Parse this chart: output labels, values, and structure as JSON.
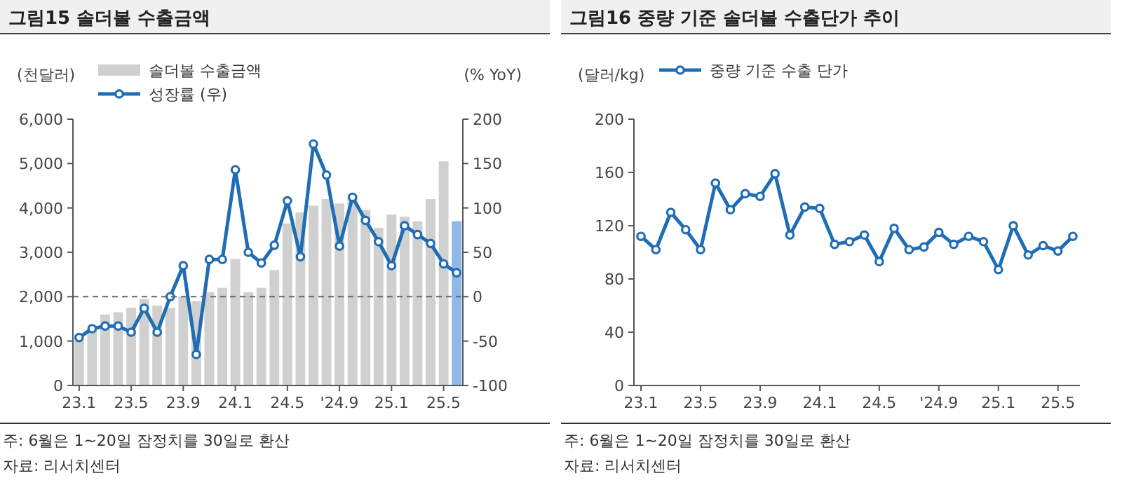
{
  "chart_data": [
    {
      "type": "bar",
      "title": "그림15 솔더볼 수출금액",
      "ylabel": "(천달러)",
      "y2label": "(% YoY)",
      "categories": [
        "23.1",
        null,
        null,
        null,
        "23.5",
        null,
        null,
        null,
        "23.9",
        null,
        null,
        null,
        "24.1",
        null,
        null,
        null,
        "24.5",
        null,
        null,
        null,
        "'24.9",
        null,
        null,
        null,
        "25.1",
        null,
        null,
        null,
        "25.5",
        null
      ],
      "series": [
        {
          "name": "솔더볼 수출금액",
          "color": "#d0d0d0",
          "colors": [
            "#d0d0d0",
            "#d0d0d0",
            "#d0d0d0",
            "#d0d0d0",
            "#d0d0d0",
            "#d0d0d0",
            "#d0d0d0",
            "#d0d0d0",
            "#d0d0d0",
            "#d0d0d0",
            "#d0d0d0",
            "#d0d0d0",
            "#d0d0d0",
            "#d0d0d0",
            "#d0d0d0",
            "#d0d0d0",
            "#d0d0d0",
            "#d0d0d0",
            "#d0d0d0",
            "#d0d0d0",
            "#d0d0d0",
            "#d0d0d0",
            "#d0d0d0",
            "#d0d0d0",
            "#d0d0d0",
            "#d0d0d0",
            "#d0d0d0",
            "#d0d0d0",
            "#d0d0d0",
            "#8db8e8"
          ],
          "values": [
            1050,
            1250,
            1600,
            1650,
            1750,
            1950,
            1800,
            1750,
            2000,
            1900,
            2100,
            2200,
            2850,
            2100,
            2200,
            2600,
            3650,
            3900,
            4050,
            4200,
            4100,
            4300,
            3950,
            3550,
            3850,
            3800,
            3700,
            4200,
            5050,
            3700
          ]
        },
        {
          "type": "line",
          "axis": "y2",
          "name": "성장률 (우)",
          "color": "#1f6db5",
          "values": [
            -46,
            -36,
            -33,
            -33,
            -40,
            -13,
            -40,
            0,
            35,
            -65,
            42,
            42,
            143,
            50,
            38,
            58,
            108,
            45,
            172,
            137,
            57,
            112,
            86,
            62,
            35,
            80,
            70,
            60,
            37,
            27
          ]
        }
      ],
      "ylim": [
        0,
        6000
      ],
      "yticks": [
        {
          "value": 0,
          "label": "0"
        },
        {
          "value": 1000,
          "label": "1,000"
        },
        {
          "value": 2000,
          "label": "2,000"
        },
        {
          "value": 3000,
          "label": "3,000"
        },
        {
          "value": 4000,
          "label": "4,000"
        },
        {
          "value": 5000,
          "label": "5,000"
        },
        {
          "value": 6000,
          "label": "6,000"
        }
      ],
      "y2lim": [
        -100,
        200
      ],
      "y2ticks": [
        -100,
        -50,
        0,
        50,
        100,
        150,
        200
      ],
      "ref_lines": [
        {
          "axis": "y2",
          "value": 0,
          "color": "#666666",
          "line_style": "dashed"
        }
      ],
      "marker": "circle",
      "legend": "top left",
      "annotations": [
        "주: 6월은 1~20일 잠정치를 30일로 환산",
        "자료: 리서치센터"
      ]
    },
    {
      "type": "line",
      "title": "그림16 중량 기준 솔더볼 수출단가 추이",
      "ylabel": "(달러/kg)",
      "categories": [
        "23.1",
        null,
        null,
        null,
        "23.5",
        null,
        null,
        null,
        "23.9",
        null,
        null,
        null,
        "24.1",
        null,
        null,
        null,
        "24.5",
        null,
        null,
        null,
        "'24.9",
        null,
        null,
        null,
        "25.1",
        null,
        null,
        null,
        "25.5",
        null
      ],
      "series": [
        {
          "name": "중량 기준 수출 단가",
          "color": "#1f6db5",
          "values": [
            112,
            102,
            130,
            117,
            102,
            152,
            132,
            144,
            142,
            159,
            113,
            134,
            133,
            106,
            108,
            113,
            93,
            118,
            102,
            104,
            115,
            106,
            112,
            108,
            87,
            120,
            98,
            105,
            101,
            112
          ]
        }
      ],
      "ylim": [
        0,
        200
      ],
      "yticks": [
        0,
        40,
        80,
        120,
        160,
        200
      ],
      "marker": "circle",
      "legend": "top left",
      "annotations": [
        "주: 6월은 1~20일 잠정치를 30일로 환산",
        "자료: 리서치센터"
      ]
    }
  ]
}
